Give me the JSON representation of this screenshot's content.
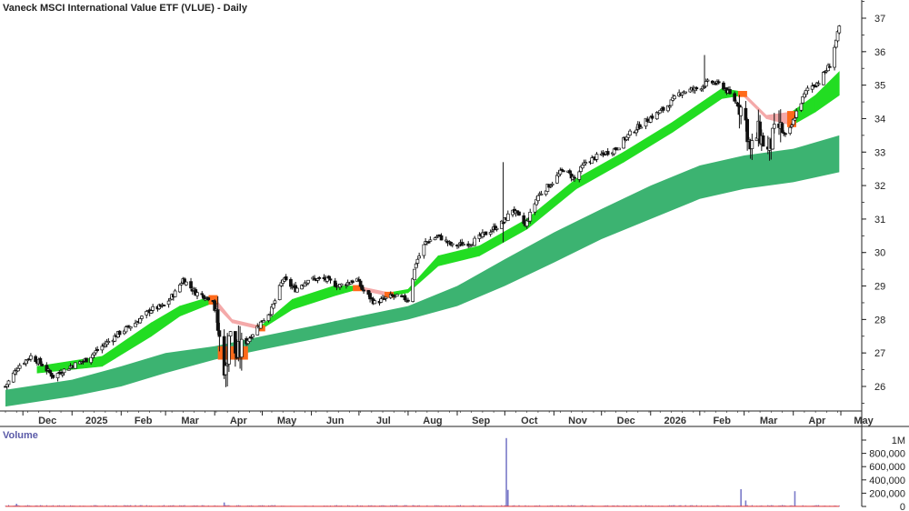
{
  "chart_data": [
    {
      "type": "candlestick",
      "title": "Vaneck MSCI International Value ETF (VLUE) - Daily",
      "x_axis": {
        "ticks": [
          {
            "label": "Dec",
            "date": "2024-12-01"
          },
          {
            "label": "2025",
            "date": "2025-01-01"
          },
          {
            "label": "Feb",
            "date": "2025-02-01"
          },
          {
            "label": "Mar",
            "date": "2025-03-01"
          },
          {
            "label": "Apr",
            "date": "2025-04-01"
          },
          {
            "label": "May",
            "date": "2025-05-01"
          },
          {
            "label": "Jun",
            "date": "2025-06-01"
          },
          {
            "label": "Jul",
            "date": "2025-07-01"
          },
          {
            "label": "Aug",
            "date": "2025-08-01"
          },
          {
            "label": "Sep",
            "date": "2025-09-01"
          },
          {
            "label": "Oct",
            "date": "2025-10-01"
          },
          {
            "label": "Nov",
            "date": "2025-11-01"
          },
          {
            "label": "Dec",
            "date": "2025-12-01"
          },
          {
            "label": "2026",
            "date": "2026-01-01"
          },
          {
            "label": "Feb",
            "date": "2026-02-01"
          },
          {
            "label": "Mar",
            "date": "2026-03-01"
          },
          {
            "label": "Apr",
            "date": "2026-04-01"
          },
          {
            "label": "May",
            "date": "2026-05-01"
          }
        ]
      },
      "y_axis": {
        "ticks": [
          26,
          27,
          28,
          29,
          30,
          31,
          32,
          33,
          34,
          35,
          36,
          37
        ],
        "ylim": [
          25,
          37.5
        ],
        "position": "right"
      },
      "price_path": [
        [
          "2024-11-20",
          26.0
        ],
        [
          "2024-11-28",
          26.6
        ],
        [
          "2024-12-06",
          26.9
        ],
        [
          "2024-12-12",
          26.7
        ],
        [
          "2024-12-20",
          26.3
        ],
        [
          "2024-12-31",
          26.6
        ],
        [
          "2025-01-10",
          26.8
        ],
        [
          "2025-01-20",
          27.2
        ],
        [
          "2025-01-31",
          27.6
        ],
        [
          "2025-02-10",
          27.9
        ],
        [
          "2025-02-20",
          28.3
        ],
        [
          "2025-02-28",
          28.4
        ],
        [
          "2025-03-07",
          28.8
        ],
        [
          "2025-03-12",
          29.2
        ],
        [
          "2025-03-20",
          28.8
        ],
        [
          "2025-03-31",
          28.6
        ],
        [
          "2025-04-04",
          27.4
        ],
        [
          "2025-04-08",
          26.4
        ],
        [
          "2025-04-10",
          27.6
        ],
        [
          "2025-04-15",
          26.9
        ],
        [
          "2025-04-22",
          27.4
        ],
        [
          "2025-04-30",
          27.9
        ],
        [
          "2025-05-07",
          28.3
        ],
        [
          "2025-05-14",
          29.2
        ],
        [
          "2025-05-22",
          28.9
        ],
        [
          "2025-05-30",
          29.2
        ],
        [
          "2025-06-10",
          29.2
        ],
        [
          "2025-06-18",
          29.0
        ],
        [
          "2025-06-30",
          29.2
        ],
        [
          "2025-07-03",
          28.9
        ],
        [
          "2025-07-11",
          28.5
        ],
        [
          "2025-07-22",
          28.7
        ],
        [
          "2025-08-01",
          28.6
        ],
        [
          "2025-08-06",
          29.7
        ],
        [
          "2025-08-12",
          30.3
        ],
        [
          "2025-08-20",
          30.5
        ],
        [
          "2025-08-29",
          30.2
        ],
        [
          "2025-09-10",
          30.3
        ],
        [
          "2025-09-20",
          30.6
        ],
        [
          "2025-09-30",
          30.9
        ],
        [
          "2025-10-06",
          31.3
        ],
        [
          "2025-10-14",
          30.8
        ],
        [
          "2025-10-22",
          31.7
        ],
        [
          "2025-10-31",
          32.1
        ],
        [
          "2025-11-07",
          32.5
        ],
        [
          "2025-11-14",
          32.2
        ],
        [
          "2025-11-21",
          32.7
        ],
        [
          "2025-11-30",
          32.9
        ],
        [
          "2025-12-10",
          33.1
        ],
        [
          "2025-12-20",
          33.6
        ],
        [
          "2025-12-31",
          34.0
        ],
        [
          "2026-01-10",
          34.3
        ],
        [
          "2026-01-20",
          34.8
        ],
        [
          "2026-01-31",
          34.9
        ],
        [
          "2026-02-07",
          35.1
        ],
        [
          "2026-02-15",
          35.0
        ],
        [
          "2026-02-22",
          34.6
        ],
        [
          "2026-03-01",
          34.2
        ],
        [
          "2026-03-05",
          33.0
        ],
        [
          "2026-03-10",
          33.6
        ],
        [
          "2026-03-16",
          33.0
        ],
        [
          "2026-03-22",
          33.8
        ],
        [
          "2026-03-28",
          33.4
        ],
        [
          "2026-04-03",
          34.2
        ],
        [
          "2026-04-10",
          34.9
        ],
        [
          "2026-04-17",
          35.1
        ],
        [
          "2026-04-24",
          35.6
        ],
        [
          "2026-04-30",
          36.7
        ]
      ],
      "fast_ribbon": {
        "colors": {
          "up": "#22dd22",
          "down": "#f4a9a9",
          "transition": "#ff6a1a"
        },
        "upper": [
          [
            "2024-12-10",
            26.6
          ],
          [
            "2025-01-20",
            26.9
          ],
          [
            "2025-02-20",
            27.9
          ],
          [
            "2025-03-10",
            28.4
          ],
          [
            "2025-03-31",
            28.7
          ],
          [
            "2025-04-12",
            28.0
          ],
          [
            "2025-04-30",
            27.8
          ],
          [
            "2025-05-20",
            28.6
          ],
          [
            "2025-06-15",
            29.0
          ],
          [
            "2025-06-30",
            29.0
          ],
          [
            "2025-07-20",
            28.8
          ],
          [
            "2025-08-01",
            28.9
          ],
          [
            "2025-08-20",
            29.9
          ],
          [
            "2025-09-15",
            30.2
          ],
          [
            "2025-10-15",
            31.0
          ],
          [
            "2025-11-15",
            32.2
          ],
          [
            "2025-12-15",
            33.0
          ],
          [
            "2026-01-15",
            33.9
          ],
          [
            "2026-02-15",
            34.9
          ],
          [
            "2026-02-28",
            34.8
          ],
          [
            "2026-03-15",
            34.1
          ],
          [
            "2026-03-31",
            34.2
          ],
          [
            "2026-04-15",
            34.7
          ],
          [
            "2026-04-30",
            35.4
          ]
        ],
        "lower": [
          [
            "2024-12-10",
            26.4
          ],
          [
            "2025-01-20",
            26.6
          ],
          [
            "2025-02-20",
            27.5
          ],
          [
            "2025-03-10",
            28.1
          ],
          [
            "2025-03-31",
            28.5
          ],
          [
            "2025-04-12",
            27.9
          ],
          [
            "2025-04-30",
            27.7
          ],
          [
            "2025-05-20",
            28.3
          ],
          [
            "2025-06-15",
            28.7
          ],
          [
            "2025-06-30",
            28.9
          ],
          [
            "2025-07-20",
            28.7
          ],
          [
            "2025-08-01",
            28.8
          ],
          [
            "2025-08-20",
            29.6
          ],
          [
            "2025-09-15",
            29.9
          ],
          [
            "2025-10-15",
            30.7
          ],
          [
            "2025-11-15",
            31.9
          ],
          [
            "2025-12-15",
            32.7
          ],
          [
            "2026-01-15",
            33.6
          ],
          [
            "2026-02-15",
            34.6
          ],
          [
            "2026-02-28",
            34.7
          ],
          [
            "2026-03-15",
            34.0
          ],
          [
            "2026-03-31",
            33.8
          ],
          [
            "2026-04-15",
            34.2
          ],
          [
            "2026-04-30",
            34.7
          ]
        ]
      },
      "slow_ribbon": {
        "color": "#3cb371",
        "transition_color": "#ff6a1a",
        "upper": [
          [
            "2024-11-20",
            25.9
          ],
          [
            "2025-01-01",
            26.2
          ],
          [
            "2025-02-01",
            26.6
          ],
          [
            "2025-03-01",
            27.0
          ],
          [
            "2025-04-01",
            27.2
          ],
          [
            "2025-05-01",
            27.5
          ],
          [
            "2025-06-01",
            27.8
          ],
          [
            "2025-07-01",
            28.1
          ],
          [
            "2025-08-01",
            28.4
          ],
          [
            "2025-09-01",
            29.0
          ],
          [
            "2025-10-01",
            29.8
          ],
          [
            "2025-11-01",
            30.6
          ],
          [
            "2025-12-01",
            31.3
          ],
          [
            "2026-01-01",
            32.0
          ],
          [
            "2026-02-01",
            32.6
          ],
          [
            "2026-03-01",
            32.9
          ],
          [
            "2026-04-01",
            33.1
          ],
          [
            "2026-04-30",
            33.5
          ]
        ],
        "lower": [
          [
            "2024-11-20",
            25.4
          ],
          [
            "2025-01-01",
            25.7
          ],
          [
            "2025-02-01",
            26.0
          ],
          [
            "2025-03-01",
            26.4
          ],
          [
            "2025-04-01",
            26.8
          ],
          [
            "2025-05-01",
            27.1
          ],
          [
            "2025-06-01",
            27.4
          ],
          [
            "2025-07-01",
            27.7
          ],
          [
            "2025-08-01",
            28.0
          ],
          [
            "2025-09-01",
            28.4
          ],
          [
            "2025-10-01",
            29.0
          ],
          [
            "2025-11-01",
            29.7
          ],
          [
            "2025-12-01",
            30.4
          ],
          [
            "2026-01-01",
            31.0
          ],
          [
            "2026-02-01",
            31.6
          ],
          [
            "2026-03-01",
            31.9
          ],
          [
            "2026-04-01",
            32.1
          ],
          [
            "2026-04-30",
            32.4
          ]
        ]
      },
      "highlight_periods": [
        {
          "start": "2025-04-03",
          "end": "2025-04-22",
          "color": "#ff6a1a"
        }
      ]
    },
    {
      "type": "bar",
      "title": "Volume",
      "y_axis": {
        "ticks": [
          "1M",
          "800,000",
          "600,000",
          "400,000",
          "200,000",
          "0"
        ],
        "ylim": [
          0,
          1000000
        ]
      },
      "baseline_volume": 15000,
      "spikes": [
        {
          "date": "2024-11-27",
          "value": 40000
        },
        {
          "date": "2025-04-07",
          "value": 60000
        },
        {
          "date": "2025-10-02",
          "value": 1030000
        },
        {
          "date": "2025-10-03",
          "value": 250000
        },
        {
          "date": "2026-02-27",
          "value": 260000
        },
        {
          "date": "2026-03-02",
          "value": 90000
        },
        {
          "date": "2026-04-02",
          "value": 230000
        }
      ],
      "bar_color": "#7a7ac8",
      "line_color": "#e03030"
    }
  ]
}
